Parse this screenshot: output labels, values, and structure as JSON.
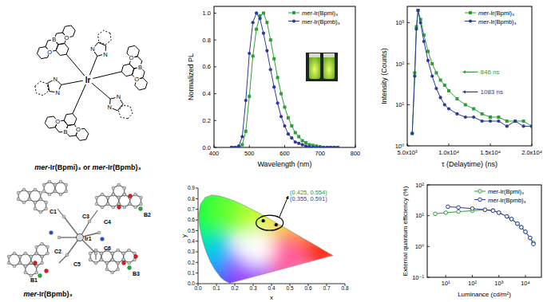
{
  "chart_data": [
    {
      "type": "line",
      "x": [
        450,
        460,
        470,
        480,
        490,
        500,
        510,
        520,
        530,
        540,
        550,
        560,
        570,
        580,
        590,
        600,
        610,
        620,
        630,
        640,
        650,
        660,
        670,
        680,
        690,
        700,
        710,
        720,
        730,
        740,
        750
      ],
      "series": [
        {
          "name": "mer-Ir(Bpmi)₃",
          "color": "#2e9d3a",
          "marker": "square",
          "values": [
            0,
            0,
            0,
            0.02,
            0.12,
            0.38,
            0.68,
            0.88,
            0.98,
            1.0,
            0.93,
            0.8,
            0.66,
            0.52,
            0.4,
            0.3,
            0.22,
            0.16,
            0.11,
            0.08,
            0.05,
            0.035,
            0.02,
            0.015,
            0.01,
            0.005,
            0,
            0,
            0,
            0,
            0
          ]
        },
        {
          "name": "mer-Ir(Bpmb)₃",
          "color": "#2a3a9c",
          "marker": "circle",
          "values": [
            0,
            0,
            0.01,
            0.08,
            0.35,
            0.7,
            0.93,
            1.0,
            0.96,
            0.85,
            0.72,
            0.58,
            0.45,
            0.33,
            0.23,
            0.16,
            0.1,
            0.07,
            0.04,
            0.03,
            0.02,
            0.01,
            0.005,
            0,
            0,
            0,
            0,
            0,
            0,
            0,
            0
          ]
        }
      ],
      "x_label": "Wavelength (nm)",
      "y_label": "Normalized PL",
      "xlim": [
        400,
        800
      ],
      "xticks": [
        400,
        500,
        600,
        700,
        800
      ],
      "ylim": [
        0,
        1.05
      ],
      "yticks": [
        {
          "value": 0,
          "label": "0.0"
        },
        {
          "value": 0.2,
          "label": "0.2"
        },
        {
          "value": 0.4,
          "label": "0.4"
        },
        {
          "value": 0.6,
          "label": "0.6"
        },
        {
          "value": 0.8,
          "label": "0.8"
        },
        {
          "value": 1,
          "label": "1.0"
        }
      ],
      "legend": "upper right"
    },
    {
      "type": "line",
      "x": [
        5600,
        5900,
        6100,
        6300,
        6600,
        7000,
        7500,
        8000,
        8500,
        9000,
        9500,
        10000,
        11000,
        12000,
        13000,
        14000,
        15000,
        16000,
        17000,
        18000,
        19000,
        20000
      ],
      "series": [
        {
          "name": "mer-Ir(Bpmi)₃",
          "color": "#2e9d3a",
          "marker": "square",
          "values": [
            2,
            60,
            800,
            2000,
            1200,
            500,
            200,
            100,
            60,
            40,
            30,
            22,
            14,
            10,
            8,
            6,
            5,
            5,
            4,
            4,
            4,
            3
          ]
        },
        {
          "name": "mer-Ir(Bpmb)₃",
          "color": "#2a3a9c",
          "marker": "circle",
          "values": [
            2,
            50,
            700,
            2000,
            1000,
            350,
            120,
            50,
            25,
            15,
            10,
            8,
            6,
            5,
            5,
            4,
            4,
            4,
            3,
            4,
            3,
            3
          ]
        }
      ],
      "x_label": "τ (Delaytime) (ns)",
      "y_label": "Intensity (Counts)",
      "log": "y",
      "xlim": [
        5000,
        20000
      ],
      "xticks": [
        {
          "value": 5000,
          "label": "5.0x10³"
        },
        {
          "value": 10000,
          "label": "1.0x10⁴"
        },
        {
          "value": 15000,
          "label": "1.5x10⁴"
        },
        {
          "value": 20000,
          "label": "2.0x10⁴"
        }
      ],
      "ylim": [
        1,
        2500
      ],
      "yticks": [
        {
          "value": 1,
          "label": "10⁰"
        },
        {
          "value": 10,
          "label": "10¹"
        },
        {
          "value": 100,
          "label": "10²"
        },
        {
          "value": 1000,
          "label": "10³"
        }
      ],
      "annotations": [
        {
          "text": "846 ns",
          "color": "#2e9d3a",
          "x": 13800,
          "y": 55
        },
        {
          "text": "1083 ns",
          "color": "#2a3a9c",
          "x": 13800,
          "y": 18
        }
      ],
      "legend": "upper right"
    },
    {
      "type": "scatter",
      "x": [
        0.425,
        0.355
      ],
      "series": [
        {
          "color": "#000000",
          "marker": "circle",
          "values": [
            0.554,
            0.591
          ]
        }
      ],
      "x_label": "x",
      "y_label": "y",
      "xlim": [
        0,
        0.8
      ],
      "xticks": [
        {
          "value": 0,
          "label": "0.0"
        },
        {
          "value": 0.1,
          "label": "0.1"
        },
        {
          "value": 0.2,
          "label": "0.2"
        },
        {
          "value": 0.3,
          "label": "0.3"
        },
        {
          "value": 0.4,
          "label": "0.4"
        },
        {
          "value": 0.5,
          "label": "0.5"
        },
        {
          "value": 0.6,
          "label": "0.6"
        },
        {
          "value": 0.7,
          "label": "0.7"
        },
        {
          "value": 0.8,
          "label": "0.8"
        }
      ],
      "ylim": [
        0,
        0.9
      ],
      "yticks": [
        {
          "value": 0,
          "label": "0.0"
        },
        {
          "value": 0.1,
          "label": "0.1"
        },
        {
          "value": 0.2,
          "label": "0.2"
        },
        {
          "value": 0.3,
          "label": "0.3"
        },
        {
          "value": 0.4,
          "label": "0.4"
        },
        {
          "value": 0.5,
          "label": "0.5"
        },
        {
          "value": 0.6,
          "label": "0.6"
        },
        {
          "value": 0.7,
          "label": "0.7"
        },
        {
          "value": 0.8,
          "label": "0.8"
        },
        {
          "value": 0.9,
          "label": "0.9"
        }
      ],
      "annotations": [
        {
          "text": "(0.425, 0.554)",
          "color": "#1e9a2e",
          "x": 0.5,
          "y": 0.84
        },
        {
          "text": "(0.355, 0.591)",
          "color": "#2b45b0",
          "x": 0.5,
          "y": 0.78
        }
      ]
    },
    {
      "type": "line",
      "series": [
        {
          "name": "mer-Ir(Bpmi)₃",
          "color": "#2e9d3a",
          "marker": "open_circle",
          "x": [
            4,
            10,
            30,
            100,
            300,
            600,
            1000,
            2000,
            3000,
            5000,
            7000,
            10000,
            15000,
            20000
          ],
          "values": [
            11.5,
            12.5,
            13.5,
            14.5,
            15.5,
            14.8,
            12.5,
            9.5,
            7.8,
            5.5,
            4.2,
            3,
            1.9,
            1.3
          ]
        },
        {
          "name": "mer-Ir(Bpmb)₃",
          "color": "#2a3a9c",
          "marker": "open_circle",
          "x": [
            12,
            30,
            100,
            300,
            600,
            1000,
            2000,
            3000,
            5000,
            7000,
            10000,
            15000,
            20000
          ],
          "values": [
            19.5,
            18.5,
            17,
            15.5,
            14.5,
            12.5,
            9.5,
            7.8,
            5.5,
            4.2,
            3,
            1.9,
            1.2
          ]
        }
      ],
      "x_label": "Luminance (cd/m²)",
      "y_label": "External quantum efficiency (%)",
      "log": true,
      "xlim": [
        2,
        40000
      ],
      "xticks": [
        {
          "value": 10,
          "label": "10¹"
        },
        {
          "value": 100,
          "label": "10²"
        },
        {
          "value": 1000,
          "label": "10³"
        },
        {
          "value": 10000,
          "label": "10⁴"
        }
      ],
      "ylim": [
        0.1,
        100
      ],
      "yticks": [
        {
          "value": 0.1,
          "label": "10⁻¹"
        },
        {
          "value": 1,
          "label": "10⁰"
        },
        {
          "value": 10,
          "label": "10¹"
        },
        {
          "value": 100,
          "label": "10²"
        }
      ],
      "legend": "upper right"
    }
  ],
  "structures": [
    {
      "caption": "mer-Ir(Bpmi)₃ or mer-Ir(Bpmb)₃",
      "atom_labels": [
        "Ir",
        "N",
        "N",
        "N",
        "N",
        "N",
        "N",
        "B",
        "O",
        "O",
        "B",
        "O",
        "O",
        "B",
        "O",
        "O"
      ]
    },
    {
      "caption": "mer-Ir(Bpmb)₃",
      "atom_labels": [
        "C1",
        "C2",
        "C3",
        "C4",
        "C5",
        "C6",
        "Ir1",
        "B1",
        "B2",
        "B3"
      ]
    }
  ]
}
